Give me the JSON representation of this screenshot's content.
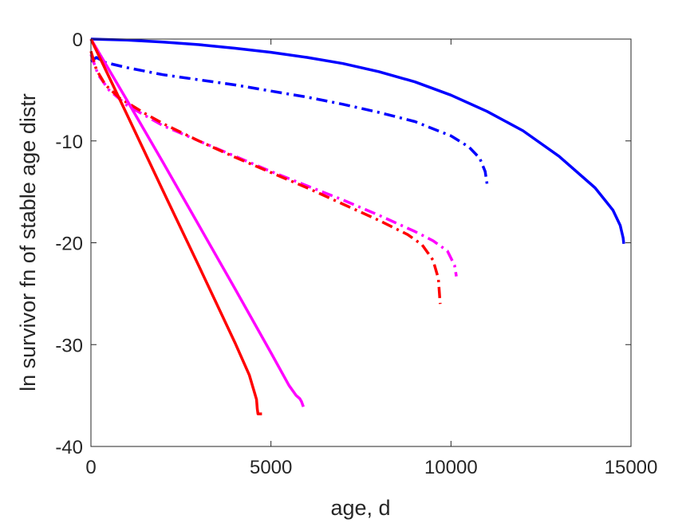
{
  "chart_data": {
    "type": "line",
    "title": "",
    "xlabel": "age, d",
    "ylabel": "ln survivor fn of stable age distr",
    "xlim": [
      0,
      15000
    ],
    "ylim": [
      -40,
      0
    ],
    "xticks": [
      0,
      5000,
      10000,
      15000
    ],
    "yticks": [
      0,
      -10,
      -20,
      -30,
      -40
    ],
    "xtick_labels": [
      "0",
      "5000",
      "10000",
      "15000"
    ],
    "ytick_labels": [
      "0",
      "-10",
      "-20",
      "-30",
      "-40"
    ],
    "grid": false,
    "legend": "none",
    "series": [
      {
        "color": "#0000ff",
        "style": "solid",
        "x": [
          0,
          1000,
          2000,
          3000,
          4000,
          5000,
          6000,
          7000,
          8000,
          9000,
          10000,
          11000,
          12000,
          13000,
          14000,
          14500,
          14700,
          14780,
          14800
        ],
        "y": [
          0,
          -0.1,
          -0.3,
          -0.55,
          -0.9,
          -1.3,
          -1.8,
          -2.4,
          -3.2,
          -4.2,
          -5.5,
          -7.1,
          -9.0,
          -11.5,
          -14.6,
          -16.8,
          -18.3,
          -19.5,
          -20.1
        ]
      },
      {
        "color": "#0000ff",
        "style": "dashdot",
        "x": [
          0,
          150,
          400,
          1000,
          2000,
          3000,
          4000,
          5000,
          6000,
          7000,
          8000,
          9000,
          10000,
          10500,
          10800,
          10950,
          11000
        ],
        "y": [
          -2.2,
          -1.8,
          -2.3,
          -2.8,
          -3.5,
          -4.0,
          -4.5,
          -5.1,
          -5.7,
          -6.4,
          -7.2,
          -8.1,
          -9.5,
          -10.6,
          -11.7,
          -13.0,
          -14.2
        ]
      },
      {
        "color": "#ff00ff",
        "style": "dashdot",
        "x": [
          0,
          200,
          500,
          1000,
          2000,
          3000,
          4000,
          5000,
          6000,
          7000,
          8000,
          9000,
          9500,
          9900,
          10100,
          10150
        ],
        "y": [
          -1.5,
          -3.5,
          -5.0,
          -6.5,
          -8.5,
          -10.0,
          -11.5,
          -13.0,
          -14.4,
          -15.8,
          -17.3,
          -18.9,
          -19.8,
          -20.8,
          -22.2,
          -23.3
        ]
      },
      {
        "color": "#ff0000",
        "style": "dashdot",
        "x": [
          0,
          150,
          400,
          800,
          1500,
          2000,
          3000,
          4000,
          5000,
          6000,
          7000,
          8000,
          8800,
          9200,
          9500,
          9650,
          9700
        ],
        "y": [
          -1.2,
          -3.0,
          -4.5,
          -5.8,
          -7.3,
          -8.3,
          -10.0,
          -11.6,
          -13.1,
          -14.6,
          -16.2,
          -17.8,
          -19.2,
          -20.2,
          -21.7,
          -23.5,
          -26.0
        ]
      },
      {
        "color": "#ff00ff",
        "style": "solid",
        "x": [
          0,
          1000,
          2000,
          3000,
          4000,
          5000,
          5500,
          5700,
          5800,
          5850,
          5900
        ],
        "y": [
          0,
          -6.0,
          -12.1,
          -18.3,
          -24.5,
          -30.8,
          -34.0,
          -35.0,
          -35.3,
          -35.6,
          -36.1
        ]
      },
      {
        "color": "#ff0000",
        "style": "solid",
        "x": [
          0,
          1000,
          2000,
          3000,
          4000,
          4400,
          4550,
          4600,
          4620,
          4640,
          4700,
          4750
        ],
        "y": [
          0,
          -7.4,
          -14.9,
          -22.3,
          -29.8,
          -33.0,
          -34.8,
          -35.4,
          -36.3,
          -36.8,
          -36.8,
          -36.8
        ]
      }
    ]
  }
}
